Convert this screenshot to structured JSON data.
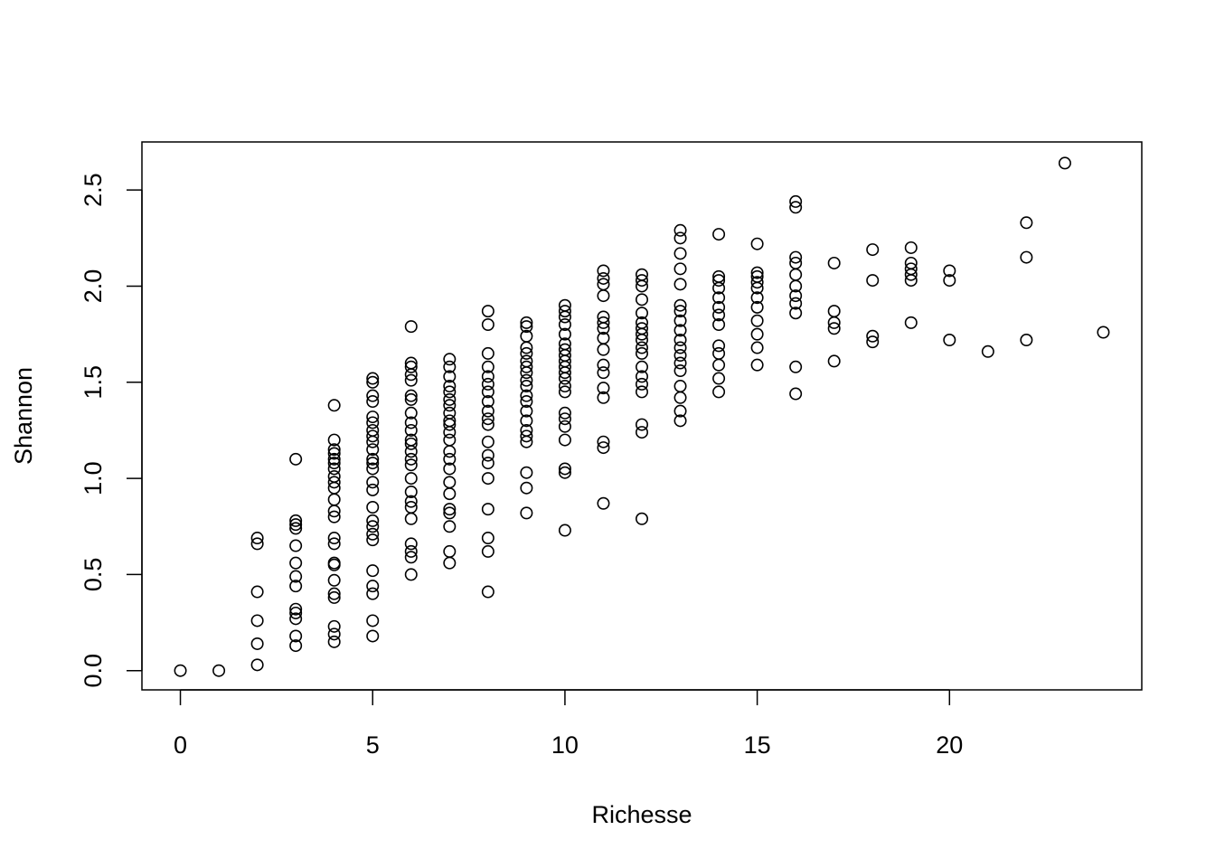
{
  "chart_data": {
    "type": "scatter",
    "title": "",
    "xlabel": "Richesse",
    "ylabel": "Shannon",
    "xlim": [
      -1,
      25
    ],
    "ylim": [
      -0.1,
      2.75
    ],
    "xticks": [
      0,
      5,
      10,
      15,
      20
    ],
    "yticks": [
      0.0,
      0.5,
      1.0,
      1.5,
      2.0,
      2.5
    ],
    "xtick_labels": [
      "0",
      "5",
      "10",
      "15",
      "20"
    ],
    "ytick_labels": [
      "0.0",
      "0.5",
      "1.0",
      "1.5",
      "2.0",
      "2.5"
    ],
    "marker": "open-circle",
    "marker_color": "#000000",
    "points": [
      [
        0,
        0.0
      ],
      [
        1,
        0.0
      ],
      [
        2,
        0.03
      ],
      [
        2,
        0.14
      ],
      [
        2,
        0.26
      ],
      [
        2,
        0.41
      ],
      [
        2,
        0.66
      ],
      [
        2,
        0.69
      ],
      [
        3,
        0.13
      ],
      [
        3,
        0.18
      ],
      [
        3,
        0.27
      ],
      [
        3,
        0.3
      ],
      [
        3,
        0.32
      ],
      [
        3,
        0.44
      ],
      [
        3,
        0.49
      ],
      [
        3,
        0.56
      ],
      [
        3,
        0.65
      ],
      [
        3,
        0.74
      ],
      [
        3,
        0.76
      ],
      [
        3,
        0.78
      ],
      [
        3,
        1.1
      ],
      [
        4,
        0.15
      ],
      [
        4,
        0.19
      ],
      [
        4,
        0.23
      ],
      [
        4,
        0.38
      ],
      [
        4,
        0.4
      ],
      [
        4,
        0.47
      ],
      [
        4,
        0.55
      ],
      [
        4,
        0.56
      ],
      [
        4,
        0.66
      ],
      [
        4,
        0.69
      ],
      [
        4,
        0.8
      ],
      [
        4,
        0.83
      ],
      [
        4,
        0.89
      ],
      [
        4,
        0.95
      ],
      [
        4,
        0.98
      ],
      [
        4,
        1.01
      ],
      [
        4,
        1.05
      ],
      [
        4,
        1.08
      ],
      [
        4,
        1.1
      ],
      [
        4,
        1.13
      ],
      [
        4,
        1.15
      ],
      [
        4,
        1.2
      ],
      [
        4,
        1.38
      ],
      [
        5,
        0.18
      ],
      [
        5,
        0.26
      ],
      [
        5,
        0.4
      ],
      [
        5,
        0.44
      ],
      [
        5,
        0.52
      ],
      [
        5,
        0.68
      ],
      [
        5,
        0.71
      ],
      [
        5,
        0.75
      ],
      [
        5,
        0.78
      ],
      [
        5,
        0.85
      ],
      [
        5,
        0.94
      ],
      [
        5,
        0.98
      ],
      [
        5,
        1.05
      ],
      [
        5,
        1.08
      ],
      [
        5,
        1.1
      ],
      [
        5,
        1.15
      ],
      [
        5,
        1.19
      ],
      [
        5,
        1.22
      ],
      [
        5,
        1.25
      ],
      [
        5,
        1.29
      ],
      [
        5,
        1.32
      ],
      [
        5,
        1.4
      ],
      [
        5,
        1.43
      ],
      [
        5,
        1.5
      ],
      [
        5,
        1.52
      ],
      [
        6,
        0.5
      ],
      [
        6,
        0.59
      ],
      [
        6,
        0.62
      ],
      [
        6,
        0.66
      ],
      [
        6,
        0.79
      ],
      [
        6,
        0.85
      ],
      [
        6,
        0.88
      ],
      [
        6,
        0.93
      ],
      [
        6,
        1.0
      ],
      [
        6,
        1.07
      ],
      [
        6,
        1.1
      ],
      [
        6,
        1.14
      ],
      [
        6,
        1.18
      ],
      [
        6,
        1.2
      ],
      [
        6,
        1.25
      ],
      [
        6,
        1.29
      ],
      [
        6,
        1.34
      ],
      [
        6,
        1.41
      ],
      [
        6,
        1.43
      ],
      [
        6,
        1.51
      ],
      [
        6,
        1.54
      ],
      [
        6,
        1.58
      ],
      [
        6,
        1.6
      ],
      [
        6,
        1.79
      ],
      [
        7,
        0.56
      ],
      [
        7,
        0.62
      ],
      [
        7,
        0.75
      ],
      [
        7,
        0.82
      ],
      [
        7,
        0.84
      ],
      [
        7,
        0.92
      ],
      [
        7,
        0.98
      ],
      [
        7,
        1.05
      ],
      [
        7,
        1.1
      ],
      [
        7,
        1.14
      ],
      [
        7,
        1.2
      ],
      [
        7,
        1.24
      ],
      [
        7,
        1.28
      ],
      [
        7,
        1.3
      ],
      [
        7,
        1.34
      ],
      [
        7,
        1.38
      ],
      [
        7,
        1.41
      ],
      [
        7,
        1.45
      ],
      [
        7,
        1.48
      ],
      [
        7,
        1.53
      ],
      [
        7,
        1.58
      ],
      [
        7,
        1.62
      ],
      [
        8,
        0.41
      ],
      [
        8,
        0.62
      ],
      [
        8,
        0.69
      ],
      [
        8,
        0.84
      ],
      [
        8,
        1.0
      ],
      [
        8,
        1.08
      ],
      [
        8,
        1.12
      ],
      [
        8,
        1.19
      ],
      [
        8,
        1.28
      ],
      [
        8,
        1.31
      ],
      [
        8,
        1.35
      ],
      [
        8,
        1.4
      ],
      [
        8,
        1.45
      ],
      [
        8,
        1.49
      ],
      [
        8,
        1.53
      ],
      [
        8,
        1.58
      ],
      [
        8,
        1.65
      ],
      [
        8,
        1.8
      ],
      [
        8,
        1.87
      ],
      [
        9,
        0.82
      ],
      [
        9,
        0.95
      ],
      [
        9,
        1.03
      ],
      [
        9,
        1.19
      ],
      [
        9,
        1.22
      ],
      [
        9,
        1.25
      ],
      [
        9,
        1.3
      ],
      [
        9,
        1.35
      ],
      [
        9,
        1.4
      ],
      [
        9,
        1.43
      ],
      [
        9,
        1.48
      ],
      [
        9,
        1.51
      ],
      [
        9,
        1.55
      ],
      [
        9,
        1.58
      ],
      [
        9,
        1.61
      ],
      [
        9,
        1.65
      ],
      [
        9,
        1.68
      ],
      [
        9,
        1.74
      ],
      [
        9,
        1.79
      ],
      [
        9,
        1.81
      ],
      [
        10,
        0.73
      ],
      [
        10,
        1.03
      ],
      [
        10,
        1.05
      ],
      [
        10,
        1.2
      ],
      [
        10,
        1.27
      ],
      [
        10,
        1.31
      ],
      [
        10,
        1.34
      ],
      [
        10,
        1.45
      ],
      [
        10,
        1.48
      ],
      [
        10,
        1.52
      ],
      [
        10,
        1.55
      ],
      [
        10,
        1.58
      ],
      [
        10,
        1.61
      ],
      [
        10,
        1.64
      ],
      [
        10,
        1.67
      ],
      [
        10,
        1.7
      ],
      [
        10,
        1.75
      ],
      [
        10,
        1.8
      ],
      [
        10,
        1.84
      ],
      [
        10,
        1.87
      ],
      [
        10,
        1.9
      ],
      [
        11,
        0.87
      ],
      [
        11,
        1.16
      ],
      [
        11,
        1.19
      ],
      [
        11,
        1.42
      ],
      [
        11,
        1.47
      ],
      [
        11,
        1.55
      ],
      [
        11,
        1.59
      ],
      [
        11,
        1.67
      ],
      [
        11,
        1.73
      ],
      [
        11,
        1.78
      ],
      [
        11,
        1.81
      ],
      [
        11,
        1.84
      ],
      [
        11,
        1.95
      ],
      [
        11,
        2.01
      ],
      [
        11,
        2.04
      ],
      [
        11,
        2.08
      ],
      [
        12,
        0.79
      ],
      [
        12,
        1.24
      ],
      [
        12,
        1.28
      ],
      [
        12,
        1.45
      ],
      [
        12,
        1.49
      ],
      [
        12,
        1.53
      ],
      [
        12,
        1.58
      ],
      [
        12,
        1.65
      ],
      [
        12,
        1.68
      ],
      [
        12,
        1.72
      ],
      [
        12,
        1.75
      ],
      [
        12,
        1.78
      ],
      [
        12,
        1.81
      ],
      [
        12,
        1.86
      ],
      [
        12,
        1.93
      ],
      [
        12,
        2.0
      ],
      [
        12,
        2.03
      ],
      [
        12,
        2.06
      ],
      [
        13,
        1.3
      ],
      [
        13,
        1.35
      ],
      [
        13,
        1.42
      ],
      [
        13,
        1.48
      ],
      [
        13,
        1.56
      ],
      [
        13,
        1.6
      ],
      [
        13,
        1.64
      ],
      [
        13,
        1.68
      ],
      [
        13,
        1.72
      ],
      [
        13,
        1.77
      ],
      [
        13,
        1.82
      ],
      [
        13,
        1.87
      ],
      [
        13,
        1.9
      ],
      [
        13,
        2.01
      ],
      [
        13,
        2.09
      ],
      [
        13,
        2.17
      ],
      [
        13,
        2.25
      ],
      [
        13,
        2.29
      ],
      [
        14,
        1.45
      ],
      [
        14,
        1.52
      ],
      [
        14,
        1.59
      ],
      [
        14,
        1.65
      ],
      [
        14,
        1.69
      ],
      [
        14,
        1.8
      ],
      [
        14,
        1.85
      ],
      [
        14,
        1.89
      ],
      [
        14,
        1.94
      ],
      [
        14,
        1.99
      ],
      [
        14,
        2.03
      ],
      [
        14,
        2.05
      ],
      [
        14,
        2.27
      ],
      [
        15,
        1.59
      ],
      [
        15,
        1.68
      ],
      [
        15,
        1.75
      ],
      [
        15,
        1.82
      ],
      [
        15,
        1.89
      ],
      [
        15,
        1.94
      ],
      [
        15,
        1.99
      ],
      [
        15,
        2.02
      ],
      [
        15,
        2.05
      ],
      [
        15,
        2.07
      ],
      [
        15,
        2.22
      ],
      [
        16,
        1.44
      ],
      [
        16,
        1.58
      ],
      [
        16,
        1.86
      ],
      [
        16,
        1.91
      ],
      [
        16,
        1.95
      ],
      [
        16,
        2.0
      ],
      [
        16,
        2.06
      ],
      [
        16,
        2.12
      ],
      [
        16,
        2.15
      ],
      [
        16,
        2.41
      ],
      [
        16,
        2.44
      ],
      [
        17,
        1.61
      ],
      [
        17,
        1.78
      ],
      [
        17,
        1.81
      ],
      [
        17,
        1.87
      ],
      [
        17,
        2.12
      ],
      [
        18,
        1.71
      ],
      [
        18,
        1.74
      ],
      [
        18,
        2.03
      ],
      [
        18,
        2.19
      ],
      [
        19,
        1.81
      ],
      [
        19,
        2.03
      ],
      [
        19,
        2.06
      ],
      [
        19,
        2.09
      ],
      [
        19,
        2.12
      ],
      [
        19,
        2.2
      ],
      [
        20,
        1.72
      ],
      [
        20,
        2.03
      ],
      [
        20,
        2.08
      ],
      [
        21,
        1.66
      ],
      [
        22,
        1.72
      ],
      [
        22,
        2.15
      ],
      [
        22,
        2.33
      ],
      [
        23,
        2.64
      ],
      [
        24,
        1.76
      ]
    ]
  }
}
